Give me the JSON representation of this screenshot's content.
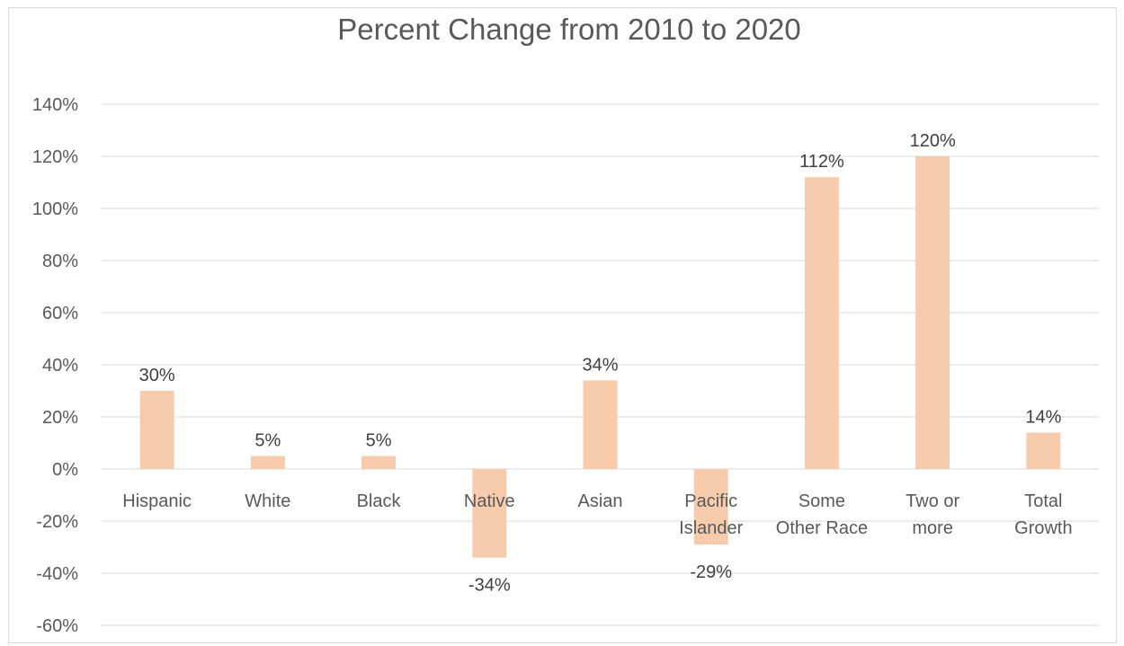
{
  "chart_data": {
    "type": "bar",
    "title": "Percent Change from 2010 to 2020",
    "categories": [
      [
        "Hispanic"
      ],
      [
        "White"
      ],
      [
        "Black"
      ],
      [
        "Native"
      ],
      [
        "Asian"
      ],
      [
        "Pacific",
        "Islander"
      ],
      [
        "Some",
        "Other Race"
      ],
      [
        "Two or",
        "more"
      ],
      [
        "Total",
        "Growth"
      ]
    ],
    "values": [
      30,
      5,
      5,
      -34,
      34,
      -29,
      112,
      120,
      14
    ],
    "data_labels": [
      "30%",
      "5%",
      "5%",
      "-34%",
      "34%",
      "-29%",
      "112%",
      "120%",
      "14%"
    ],
    "yticks": [
      "140%",
      "120%",
      "100%",
      "80%",
      "60%",
      "40%",
      "20%",
      "0%",
      "-20%",
      "-40%",
      "-60%"
    ],
    "ylim": [
      -60,
      140
    ],
    "grid": true,
    "legend": "none",
    "bar_color": "#f8cbad",
    "grid_color": "#d9d9d9",
    "text_color": "#595959"
  }
}
